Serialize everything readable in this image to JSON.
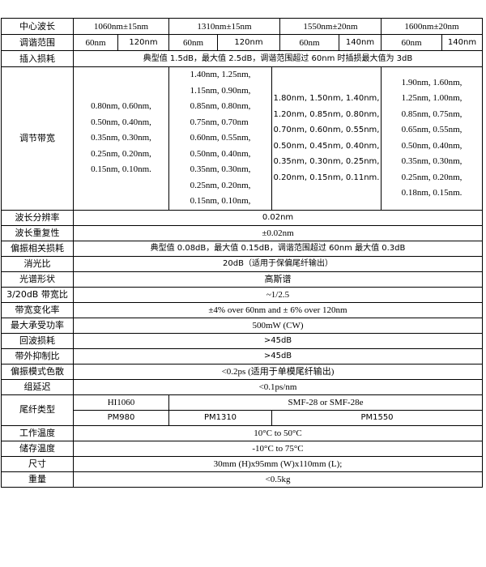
{
  "header": {
    "label": "中心波长",
    "wavelengths": [
      "1060nm±15nm",
      "1310nm±15nm",
      "1550nm±20nm",
      "1600nm±20nm"
    ]
  },
  "tuning": {
    "label": "调谐范围",
    "values": [
      "60nm",
      "120nm",
      "60nm",
      "120nm",
      "60nm",
      "140nm",
      "60nm",
      "140nm"
    ]
  },
  "insertion_loss": {
    "label": "插入损耗",
    "value": "典型值 1.5dB，最大值 2.5dB，调谐范围超过 60nm 时插损最大值为 3dB"
  },
  "bandwidth": {
    "label": "调节带宽",
    "columns": [
      [
        "0.80nm, 0.60nm,",
        "0.50nm, 0.40nm,",
        "0.35nm, 0.30nm,",
        "0.25nm, 0.20nm,",
        "0.15nm, 0.10nm."
      ],
      [
        "1.40nm, 1.25nm,",
        "1.15nm, 0.90nm,",
        "0.85nm, 0.80nm,",
        "0.75nm, 0.70nm",
        "0.60nm, 0.55nm,",
        "0.50nm, 0.40nm,",
        "0.35nm, 0.30nm,",
        "0.25nm, 0.20nm,",
        "0.15nm, 0.10nm,"
      ],
      [
        "1.80nm, 1.50nm, 1.40nm,",
        "1.20nm, 0.85nm, 0.80nm,",
        "0.70nm, 0.60nm, 0.55nm,",
        "0.50nm, 0.45nm, 0.40nm,",
        "0.35nm, 0.30nm, 0.25nm,",
        "0.20nm, 0.15nm, 0.11nm."
      ],
      [
        "1.90nm, 1.60nm,",
        "1.25nm, 1.00nm,",
        "0.85nm, 0.75nm,",
        "0.65nm, 0.55nm,",
        "0.50nm, 0.40nm,",
        "0.35nm, 0.30nm,",
        "0.25nm, 0.20nm,",
        "0.18nm, 0.15nm."
      ]
    ]
  },
  "rows": [
    {
      "label": "波长分辨率",
      "value": "0.02nm"
    },
    {
      "label": "波长重复性",
      "value": "±0.02nm"
    },
    {
      "label": "偏振相关损耗",
      "value": "典型值 0.08dB，最大值 0.15dB，调谐范围超过 60nm 最大值 0.3dB"
    },
    {
      "label": "消光比",
      "value": "20dB（适用于保偏尾纤输出）"
    },
    {
      "label": "光谱形状",
      "value": "高斯谱"
    },
    {
      "label": "3/20dB 带宽比",
      "value": "~1/2.5"
    },
    {
      "label": "带宽变化率",
      "value": "±4% over 60nm and ± 6% over 120nm"
    },
    {
      "label": "最大承受功率",
      "value": "500mW (CW)"
    },
    {
      "label": "回波损耗",
      "value": ">45dB"
    },
    {
      "label": "带外抑制比",
      "value": ">45dB"
    },
    {
      "label": "偏振模式色散",
      "value": "<0.2ps (适用于单模尾纤输出)"
    },
    {
      "label": "组延迟",
      "value": "<0.1ps/nm"
    }
  ],
  "fiber": {
    "label": "尾纤类型",
    "row1": [
      "HI1060",
      "SMF-28 or SMF-28e"
    ],
    "row2": [
      "PM980",
      "PM1310",
      "PM1550"
    ]
  },
  "rows2": [
    {
      "label": "工作温度",
      "value": "10°C to 50°C"
    },
    {
      "label": "储存温度",
      "value": "-10°C to 75°C"
    },
    {
      "label": "尺寸",
      "value": "30mm (H)x95mm (W)x110mm (L);"
    },
    {
      "label": "重量",
      "value": "<0.5kg"
    }
  ]
}
